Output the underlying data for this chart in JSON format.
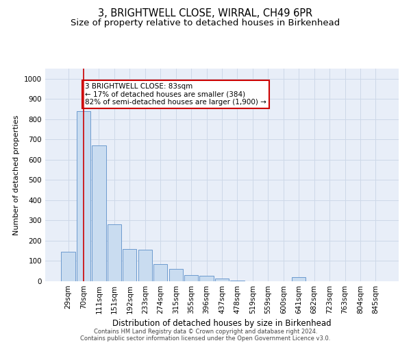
{
  "title": "3, BRIGHTWELL CLOSE, WIRRAL, CH49 6PR",
  "subtitle": "Size of property relative to detached houses in Birkenhead",
  "xlabel": "Distribution of detached houses by size in Birkenhead",
  "ylabel": "Number of detached properties",
  "footer_line1": "Contains HM Land Registry data © Crown copyright and database right 2024.",
  "footer_line2": "Contains public sector information licensed under the Open Government Licence v3.0.",
  "categories": [
    "29sqm",
    "70sqm",
    "111sqm",
    "151sqm",
    "192sqm",
    "233sqm",
    "274sqm",
    "315sqm",
    "355sqm",
    "396sqm",
    "437sqm",
    "478sqm",
    "519sqm",
    "559sqm",
    "600sqm",
    "641sqm",
    "682sqm",
    "723sqm",
    "763sqm",
    "804sqm",
    "845sqm"
  ],
  "values": [
    145,
    840,
    670,
    280,
    160,
    155,
    85,
    60,
    30,
    27,
    14,
    5,
    0,
    0,
    0,
    20,
    0,
    0,
    0,
    0,
    0
  ],
  "bar_color": "#c9dcf0",
  "bar_edge_color": "#5b8fc9",
  "grid_color": "#cdd8e8",
  "background_color": "#e8eef8",
  "vline_x": 1.0,
  "vline_color": "#cc0000",
  "annotation_text": "3 BRIGHTWELL CLOSE: 83sqm\n← 17% of detached houses are smaller (384)\n82% of semi-detached houses are larger (1,900) →",
  "annotation_box_color": "#ffffff",
  "annotation_box_edge_color": "#cc0000",
  "ylim": [
    0,
    1050
  ],
  "yticks": [
    0,
    100,
    200,
    300,
    400,
    500,
    600,
    700,
    800,
    900,
    1000
  ],
  "title_fontsize": 10.5,
  "subtitle_fontsize": 9.5,
  "xlabel_fontsize": 8.5,
  "ylabel_fontsize": 8,
  "tick_fontsize": 7.5,
  "annotation_fontsize": 7.5,
  "footer_fontsize": 6.0
}
